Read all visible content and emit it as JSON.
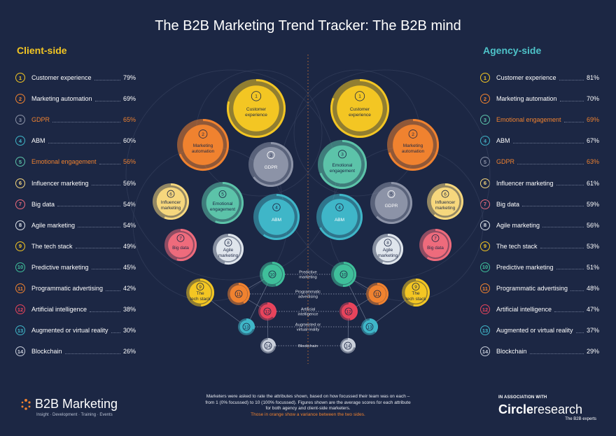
{
  "title": "The B2B Marketing Trend Tracker: The B2B mind",
  "client": {
    "heading": "Client-side",
    "items": [
      {
        "n": "1",
        "label": "Customer experience",
        "pct": "79%",
        "color": "#f3c623",
        "hl": false
      },
      {
        "n": "2",
        "label": "Marketing automation",
        "pct": "69%",
        "color": "#f0822f",
        "hl": false
      },
      {
        "n": "3",
        "label": "GDPR",
        "pct": "65%",
        "color": "#8c93a7",
        "hl": true
      },
      {
        "n": "4",
        "label": "ABM",
        "pct": "60%",
        "color": "#3fb6c8",
        "hl": false
      },
      {
        "n": "5",
        "label": "Emotional engagement",
        "pct": "56%",
        "color": "#5cc3a9",
        "hl": true
      },
      {
        "n": "6",
        "label": "Influencer marketing",
        "pct": "56%",
        "color": "#f6d77d",
        "hl": false
      },
      {
        "n": "7",
        "label": "Big data",
        "pct": "54%",
        "color": "#ee6b7c",
        "hl": false
      },
      {
        "n": "8",
        "label": "Agile marketing",
        "pct": "54%",
        "color": "#dfe5ec",
        "hl": false
      },
      {
        "n": "9",
        "label": "The tech stack",
        "pct": "49%",
        "color": "#f3c623",
        "hl": false
      },
      {
        "n": "10",
        "label": "Predictive marketing",
        "pct": "45%",
        "color": "#3fbf9a",
        "hl": false
      },
      {
        "n": "11",
        "label": "Programmatic advertising",
        "pct": "42%",
        "color": "#f0822f",
        "hl": false
      },
      {
        "n": "12",
        "label": "Artificial intelligence",
        "pct": "38%",
        "color": "#e8445c",
        "hl": false
      },
      {
        "n": "13",
        "label": "Augmented or virtual reality",
        "pct": "30%",
        "color": "#3fb6c8",
        "hl": false
      },
      {
        "n": "14",
        "label": "Blockchain",
        "pct": "26%",
        "color": "#c9cfdb",
        "hl": false
      }
    ]
  },
  "agency": {
    "heading": "Agency-side",
    "items": [
      {
        "n": "1",
        "label": "Customer experience",
        "pct": "81%",
        "color": "#f3c623",
        "hl": false
      },
      {
        "n": "2",
        "label": "Marketing automation",
        "pct": "70%",
        "color": "#f0822f",
        "hl": false
      },
      {
        "n": "3",
        "label": "Emotional engagement",
        "pct": "69%",
        "color": "#5cc3a9",
        "hl": true
      },
      {
        "n": "4",
        "label": "ABM",
        "pct": "67%",
        "color": "#3fb6c8",
        "hl": false
      },
      {
        "n": "5",
        "label": "GDPR",
        "pct": "63%",
        "color": "#8c93a7",
        "hl": true
      },
      {
        "n": "6",
        "label": "Influencer marketing",
        "pct": "61%",
        "color": "#f6d77d",
        "hl": false
      },
      {
        "n": "7",
        "label": "Big data",
        "pct": "59%",
        "color": "#ee6b7c",
        "hl": false
      },
      {
        "n": "8",
        "label": "Agile marketing",
        "pct": "56%",
        "color": "#dfe5ec",
        "hl": false
      },
      {
        "n": "9",
        "label": "The tech stack",
        "pct": "53%",
        "color": "#f3c623",
        "hl": false
      },
      {
        "n": "10",
        "label": "Predictive marketing",
        "pct": "51%",
        "color": "#3fbf9a",
        "hl": false
      },
      {
        "n": "11",
        "label": "Programmatic advertising",
        "pct": "48%",
        "color": "#f0822f",
        "hl": false
      },
      {
        "n": "12",
        "label": "Artificial intelligence",
        "pct": "47%",
        "color": "#e8445c",
        "hl": false
      },
      {
        "n": "13",
        "label": "Augmented or virtual reality",
        "pct": "37%",
        "color": "#3fb6c8",
        "hl": false
      },
      {
        "n": "14",
        "label": "Blockchain",
        "pct": "29%",
        "color": "#c9cfdb",
        "hl": false
      }
    ]
  },
  "bubbles_client": [
    {
      "n": "1",
      "text": "Customer\nexperience"
    },
    {
      "n": "2",
      "text": "Marketing\nautomation"
    },
    {
      "n": "3",
      "text": "GDPR"
    },
    {
      "n": "4",
      "text": "ABM"
    },
    {
      "n": "5",
      "text": "Emotional\nengagement"
    },
    {
      "n": "6",
      "text": "Influencer\nmarketing"
    },
    {
      "n": "7",
      "text": "Big data"
    },
    {
      "n": "8",
      "text": "Agile\nmarketing"
    },
    {
      "n": "9",
      "text": "The\ntech stack"
    },
    {
      "n": "10",
      "text": ""
    },
    {
      "n": "11",
      "text": ""
    },
    {
      "n": "12",
      "text": ""
    },
    {
      "n": "13",
      "text": ""
    },
    {
      "n": "14",
      "text": ""
    }
  ],
  "bubbles_agency": [
    {
      "n": "1",
      "text": "Customer\nexperience"
    },
    {
      "n": "2",
      "text": "Marketing\nautomation"
    },
    {
      "n": "3",
      "text": "Emotional\nengagement"
    },
    {
      "n": "4",
      "text": "ABM"
    },
    {
      "n": "5",
      "text": "GDPR"
    },
    {
      "n": "6",
      "text": "Influencer\nmarketing"
    },
    {
      "n": "7",
      "text": "Big data"
    },
    {
      "n": "8",
      "text": "Agile\nmarketing"
    },
    {
      "n": "9",
      "text": "The\ntech stack"
    },
    {
      "n": "10",
      "text": ""
    },
    {
      "n": "11",
      "text": ""
    },
    {
      "n": "12",
      "text": ""
    },
    {
      "n": "13",
      "text": ""
    },
    {
      "n": "14",
      "text": ""
    }
  ],
  "center_labels": [
    "Predictive\nmarketing",
    "Programmatic\nadvertising",
    "Artificial\nintelligence",
    "Augmented or\nvirtual reality",
    "Blockchain"
  ],
  "footnote": {
    "text": "Marketers were asked to rate the attributes shown, based on how focussed their team was on each – from 1 (0% focussed) to 10 (100% focussed). Figures shown are the average scores for each attribute for both agency and client-side marketers.",
    "highlight": "Those in orange show a variance between the two sides."
  },
  "logo_left": {
    "name": "B2B Marketing",
    "tagline": "Insight · Development · Training · Events"
  },
  "logo_right": {
    "assoc": "IN ASSOCIATION WITH",
    "brand_a": "Circle",
    "brand_b": "research",
    "sub": "The B2B experts"
  },
  "colors": {
    "background": "#1c2744",
    "highlight": "#f0822f",
    "client_heading": "#f3c623",
    "agency_heading": "#4ec3c9"
  }
}
